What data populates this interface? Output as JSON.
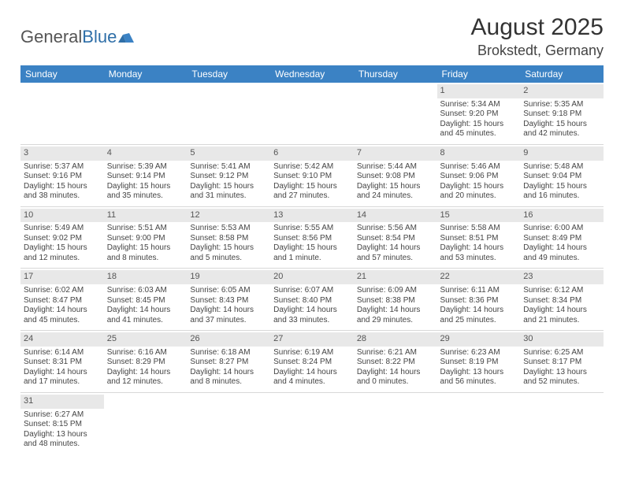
{
  "logo": {
    "general": "General",
    "blue": "Blue"
  },
  "title": "August 2025",
  "location": "Brokstedt, Germany",
  "colors": {
    "header_bg": "#3b82c4",
    "header_fg": "#ffffff",
    "daynum_bg": "#e8e8e8",
    "border": "#d8d8d8",
    "logo_accent": "#2f6fa8"
  },
  "days_of_week": [
    "Sunday",
    "Monday",
    "Tuesday",
    "Wednesday",
    "Thursday",
    "Friday",
    "Saturday"
  ],
  "weeks": [
    [
      null,
      null,
      null,
      null,
      null,
      {
        "n": "1",
        "sr": "Sunrise: 5:34 AM",
        "ss": "Sunset: 9:20 PM",
        "d1": "Daylight: 15 hours",
        "d2": "and 45 minutes."
      },
      {
        "n": "2",
        "sr": "Sunrise: 5:35 AM",
        "ss": "Sunset: 9:18 PM",
        "d1": "Daylight: 15 hours",
        "d2": "and 42 minutes."
      }
    ],
    [
      {
        "n": "3",
        "sr": "Sunrise: 5:37 AM",
        "ss": "Sunset: 9:16 PM",
        "d1": "Daylight: 15 hours",
        "d2": "and 38 minutes."
      },
      {
        "n": "4",
        "sr": "Sunrise: 5:39 AM",
        "ss": "Sunset: 9:14 PM",
        "d1": "Daylight: 15 hours",
        "d2": "and 35 minutes."
      },
      {
        "n": "5",
        "sr": "Sunrise: 5:41 AM",
        "ss": "Sunset: 9:12 PM",
        "d1": "Daylight: 15 hours",
        "d2": "and 31 minutes."
      },
      {
        "n": "6",
        "sr": "Sunrise: 5:42 AM",
        "ss": "Sunset: 9:10 PM",
        "d1": "Daylight: 15 hours",
        "d2": "and 27 minutes."
      },
      {
        "n": "7",
        "sr": "Sunrise: 5:44 AM",
        "ss": "Sunset: 9:08 PM",
        "d1": "Daylight: 15 hours",
        "d2": "and 24 minutes."
      },
      {
        "n": "8",
        "sr": "Sunrise: 5:46 AM",
        "ss": "Sunset: 9:06 PM",
        "d1": "Daylight: 15 hours",
        "d2": "and 20 minutes."
      },
      {
        "n": "9",
        "sr": "Sunrise: 5:48 AM",
        "ss": "Sunset: 9:04 PM",
        "d1": "Daylight: 15 hours",
        "d2": "and 16 minutes."
      }
    ],
    [
      {
        "n": "10",
        "sr": "Sunrise: 5:49 AM",
        "ss": "Sunset: 9:02 PM",
        "d1": "Daylight: 15 hours",
        "d2": "and 12 minutes."
      },
      {
        "n": "11",
        "sr": "Sunrise: 5:51 AM",
        "ss": "Sunset: 9:00 PM",
        "d1": "Daylight: 15 hours",
        "d2": "and 8 minutes."
      },
      {
        "n": "12",
        "sr": "Sunrise: 5:53 AM",
        "ss": "Sunset: 8:58 PM",
        "d1": "Daylight: 15 hours",
        "d2": "and 5 minutes."
      },
      {
        "n": "13",
        "sr": "Sunrise: 5:55 AM",
        "ss": "Sunset: 8:56 PM",
        "d1": "Daylight: 15 hours",
        "d2": "and 1 minute."
      },
      {
        "n": "14",
        "sr": "Sunrise: 5:56 AM",
        "ss": "Sunset: 8:54 PM",
        "d1": "Daylight: 14 hours",
        "d2": "and 57 minutes."
      },
      {
        "n": "15",
        "sr": "Sunrise: 5:58 AM",
        "ss": "Sunset: 8:51 PM",
        "d1": "Daylight: 14 hours",
        "d2": "and 53 minutes."
      },
      {
        "n": "16",
        "sr": "Sunrise: 6:00 AM",
        "ss": "Sunset: 8:49 PM",
        "d1": "Daylight: 14 hours",
        "d2": "and 49 minutes."
      }
    ],
    [
      {
        "n": "17",
        "sr": "Sunrise: 6:02 AM",
        "ss": "Sunset: 8:47 PM",
        "d1": "Daylight: 14 hours",
        "d2": "and 45 minutes."
      },
      {
        "n": "18",
        "sr": "Sunrise: 6:03 AM",
        "ss": "Sunset: 8:45 PM",
        "d1": "Daylight: 14 hours",
        "d2": "and 41 minutes."
      },
      {
        "n": "19",
        "sr": "Sunrise: 6:05 AM",
        "ss": "Sunset: 8:43 PM",
        "d1": "Daylight: 14 hours",
        "d2": "and 37 minutes."
      },
      {
        "n": "20",
        "sr": "Sunrise: 6:07 AM",
        "ss": "Sunset: 8:40 PM",
        "d1": "Daylight: 14 hours",
        "d2": "and 33 minutes."
      },
      {
        "n": "21",
        "sr": "Sunrise: 6:09 AM",
        "ss": "Sunset: 8:38 PM",
        "d1": "Daylight: 14 hours",
        "d2": "and 29 minutes."
      },
      {
        "n": "22",
        "sr": "Sunrise: 6:11 AM",
        "ss": "Sunset: 8:36 PM",
        "d1": "Daylight: 14 hours",
        "d2": "and 25 minutes."
      },
      {
        "n": "23",
        "sr": "Sunrise: 6:12 AM",
        "ss": "Sunset: 8:34 PM",
        "d1": "Daylight: 14 hours",
        "d2": "and 21 minutes."
      }
    ],
    [
      {
        "n": "24",
        "sr": "Sunrise: 6:14 AM",
        "ss": "Sunset: 8:31 PM",
        "d1": "Daylight: 14 hours",
        "d2": "and 17 minutes."
      },
      {
        "n": "25",
        "sr": "Sunrise: 6:16 AM",
        "ss": "Sunset: 8:29 PM",
        "d1": "Daylight: 14 hours",
        "d2": "and 12 minutes."
      },
      {
        "n": "26",
        "sr": "Sunrise: 6:18 AM",
        "ss": "Sunset: 8:27 PM",
        "d1": "Daylight: 14 hours",
        "d2": "and 8 minutes."
      },
      {
        "n": "27",
        "sr": "Sunrise: 6:19 AM",
        "ss": "Sunset: 8:24 PM",
        "d1": "Daylight: 14 hours",
        "d2": "and 4 minutes."
      },
      {
        "n": "28",
        "sr": "Sunrise: 6:21 AM",
        "ss": "Sunset: 8:22 PM",
        "d1": "Daylight: 14 hours",
        "d2": "and 0 minutes."
      },
      {
        "n": "29",
        "sr": "Sunrise: 6:23 AM",
        "ss": "Sunset: 8:19 PM",
        "d1": "Daylight: 13 hours",
        "d2": "and 56 minutes."
      },
      {
        "n": "30",
        "sr": "Sunrise: 6:25 AM",
        "ss": "Sunset: 8:17 PM",
        "d1": "Daylight: 13 hours",
        "d2": "and 52 minutes."
      }
    ],
    [
      {
        "n": "31",
        "sr": "Sunrise: 6:27 AM",
        "ss": "Sunset: 8:15 PM",
        "d1": "Daylight: 13 hours",
        "d2": "and 48 minutes."
      },
      null,
      null,
      null,
      null,
      null,
      null
    ]
  ]
}
